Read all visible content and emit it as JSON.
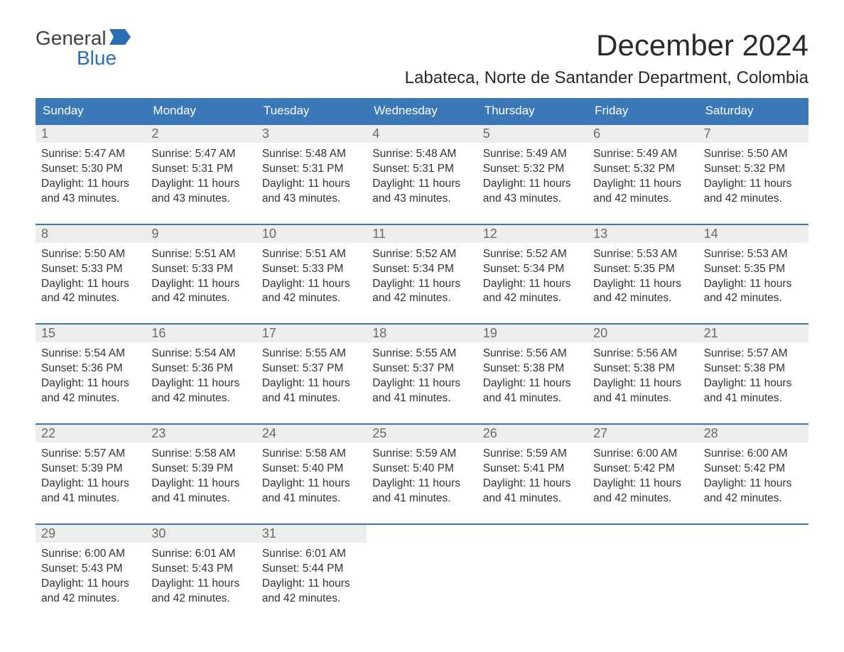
{
  "logo": {
    "word1": "General",
    "word2": "Blue"
  },
  "title": "December 2024",
  "location": "Labateca, Norte de Santander Department, Colombia",
  "colors": {
    "header_bg": "#3a78b8",
    "header_text": "#ffffff",
    "daynum_bg": "#eceded",
    "daynum_text": "#6a6a6a",
    "logo_gray": "#404040",
    "logo_blue": "#2a6fb5",
    "row_border": "#3a78b8"
  },
  "weekdays": [
    "Sunday",
    "Monday",
    "Tuesday",
    "Wednesday",
    "Thursday",
    "Friday",
    "Saturday"
  ],
  "weeks": [
    [
      {
        "n": "1",
        "sr": "5:47 AM",
        "ss": "5:30 PM",
        "dl1": "Daylight: 11 hours",
        "dl2": "and 43 minutes."
      },
      {
        "n": "2",
        "sr": "5:47 AM",
        "ss": "5:31 PM",
        "dl1": "Daylight: 11 hours",
        "dl2": "and 43 minutes."
      },
      {
        "n": "3",
        "sr": "5:48 AM",
        "ss": "5:31 PM",
        "dl1": "Daylight: 11 hours",
        "dl2": "and 43 minutes."
      },
      {
        "n": "4",
        "sr": "5:48 AM",
        "ss": "5:31 PM",
        "dl1": "Daylight: 11 hours",
        "dl2": "and 43 minutes."
      },
      {
        "n": "5",
        "sr": "5:49 AM",
        "ss": "5:32 PM",
        "dl1": "Daylight: 11 hours",
        "dl2": "and 43 minutes."
      },
      {
        "n": "6",
        "sr": "5:49 AM",
        "ss": "5:32 PM",
        "dl1": "Daylight: 11 hours",
        "dl2": "and 42 minutes."
      },
      {
        "n": "7",
        "sr": "5:50 AM",
        "ss": "5:32 PM",
        "dl1": "Daylight: 11 hours",
        "dl2": "and 42 minutes."
      }
    ],
    [
      {
        "n": "8",
        "sr": "5:50 AM",
        "ss": "5:33 PM",
        "dl1": "Daylight: 11 hours",
        "dl2": "and 42 minutes."
      },
      {
        "n": "9",
        "sr": "5:51 AM",
        "ss": "5:33 PM",
        "dl1": "Daylight: 11 hours",
        "dl2": "and 42 minutes."
      },
      {
        "n": "10",
        "sr": "5:51 AM",
        "ss": "5:33 PM",
        "dl1": "Daylight: 11 hours",
        "dl2": "and 42 minutes."
      },
      {
        "n": "11",
        "sr": "5:52 AM",
        "ss": "5:34 PM",
        "dl1": "Daylight: 11 hours",
        "dl2": "and 42 minutes."
      },
      {
        "n": "12",
        "sr": "5:52 AM",
        "ss": "5:34 PM",
        "dl1": "Daylight: 11 hours",
        "dl2": "and 42 minutes."
      },
      {
        "n": "13",
        "sr": "5:53 AM",
        "ss": "5:35 PM",
        "dl1": "Daylight: 11 hours",
        "dl2": "and 42 minutes."
      },
      {
        "n": "14",
        "sr": "5:53 AM",
        "ss": "5:35 PM",
        "dl1": "Daylight: 11 hours",
        "dl2": "and 42 minutes."
      }
    ],
    [
      {
        "n": "15",
        "sr": "5:54 AM",
        "ss": "5:36 PM",
        "dl1": "Daylight: 11 hours",
        "dl2": "and 42 minutes."
      },
      {
        "n": "16",
        "sr": "5:54 AM",
        "ss": "5:36 PM",
        "dl1": "Daylight: 11 hours",
        "dl2": "and 42 minutes."
      },
      {
        "n": "17",
        "sr": "5:55 AM",
        "ss": "5:37 PM",
        "dl1": "Daylight: 11 hours",
        "dl2": "and 41 minutes."
      },
      {
        "n": "18",
        "sr": "5:55 AM",
        "ss": "5:37 PM",
        "dl1": "Daylight: 11 hours",
        "dl2": "and 41 minutes."
      },
      {
        "n": "19",
        "sr": "5:56 AM",
        "ss": "5:38 PM",
        "dl1": "Daylight: 11 hours",
        "dl2": "and 41 minutes."
      },
      {
        "n": "20",
        "sr": "5:56 AM",
        "ss": "5:38 PM",
        "dl1": "Daylight: 11 hours",
        "dl2": "and 41 minutes."
      },
      {
        "n": "21",
        "sr": "5:57 AM",
        "ss": "5:38 PM",
        "dl1": "Daylight: 11 hours",
        "dl2": "and 41 minutes."
      }
    ],
    [
      {
        "n": "22",
        "sr": "5:57 AM",
        "ss": "5:39 PM",
        "dl1": "Daylight: 11 hours",
        "dl2": "and 41 minutes."
      },
      {
        "n": "23",
        "sr": "5:58 AM",
        "ss": "5:39 PM",
        "dl1": "Daylight: 11 hours",
        "dl2": "and 41 minutes."
      },
      {
        "n": "24",
        "sr": "5:58 AM",
        "ss": "5:40 PM",
        "dl1": "Daylight: 11 hours",
        "dl2": "and 41 minutes."
      },
      {
        "n": "25",
        "sr": "5:59 AM",
        "ss": "5:40 PM",
        "dl1": "Daylight: 11 hours",
        "dl2": "and 41 minutes."
      },
      {
        "n": "26",
        "sr": "5:59 AM",
        "ss": "5:41 PM",
        "dl1": "Daylight: 11 hours",
        "dl2": "and 41 minutes."
      },
      {
        "n": "27",
        "sr": "6:00 AM",
        "ss": "5:42 PM",
        "dl1": "Daylight: 11 hours",
        "dl2": "and 42 minutes."
      },
      {
        "n": "28",
        "sr": "6:00 AM",
        "ss": "5:42 PM",
        "dl1": "Daylight: 11 hours",
        "dl2": "and 42 minutes."
      }
    ],
    [
      {
        "n": "29",
        "sr": "6:00 AM",
        "ss": "5:43 PM",
        "dl1": "Daylight: 11 hours",
        "dl2": "and 42 minutes."
      },
      {
        "n": "30",
        "sr": "6:01 AM",
        "ss": "5:43 PM",
        "dl1": "Daylight: 11 hours",
        "dl2": "and 42 minutes."
      },
      {
        "n": "31",
        "sr": "6:01 AM",
        "ss": "5:44 PM",
        "dl1": "Daylight: 11 hours",
        "dl2": "and 42 minutes."
      },
      null,
      null,
      null,
      null
    ]
  ],
  "labels": {
    "sunrise_prefix": "Sunrise: ",
    "sunset_prefix": "Sunset: "
  }
}
